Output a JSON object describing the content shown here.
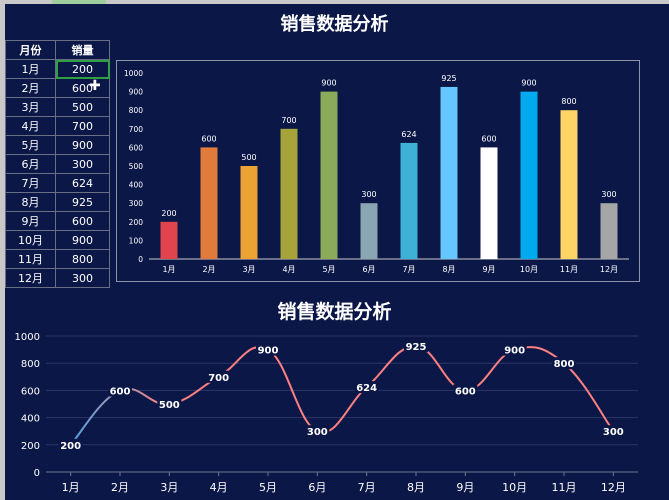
{
  "title": "销售数据分析",
  "table": {
    "headers": [
      "月份",
      "销量"
    ],
    "rows": [
      [
        "1月",
        "200"
      ],
      [
        "2月",
        "600"
      ],
      [
        "3月",
        "500"
      ],
      [
        "4月",
        "700"
      ],
      [
        "5月",
        "900"
      ],
      [
        "6月",
        "300"
      ],
      [
        "7月",
        "624"
      ],
      [
        "8月",
        "925"
      ],
      [
        "9月",
        "600"
      ],
      [
        "10月",
        "900"
      ],
      [
        "11月",
        "800"
      ],
      [
        "12月",
        "300"
      ]
    ],
    "selected_cell": "B2"
  },
  "chart_data": [
    {
      "type": "bar",
      "categories": [
        "1月",
        "2月",
        "3月",
        "4月",
        "5月",
        "6月",
        "7月",
        "8月",
        "9月",
        "10月",
        "11月",
        "12月"
      ],
      "values": [
        200,
        600,
        500,
        700,
        900,
        300,
        624,
        925,
        600,
        900,
        800,
        300
      ],
      "colors": [
        "#e0454f",
        "#e07b3c",
        "#eba334",
        "#a7a33b",
        "#8bab5a",
        "#8aa6b3",
        "#3db2d6",
        "#66c7ff",
        "#ffffff",
        "#00aaee",
        "#ffd466",
        "#a6a6a6"
      ],
      "ylim": [
        0,
        1000
      ],
      "yticks": [
        0,
        100,
        200,
        300,
        400,
        500,
        600,
        700,
        800,
        900,
        1000
      ],
      "data_labels": true,
      "grid": false
    },
    {
      "type": "line",
      "title": "销售数据分析",
      "categories": [
        "1月",
        "2月",
        "3月",
        "4月",
        "5月",
        "6月",
        "7月",
        "8月",
        "9月",
        "10月",
        "11月",
        "12月"
      ],
      "values": [
        200,
        600,
        500,
        700,
        900,
        300,
        624,
        925,
        600,
        900,
        800,
        300
      ],
      "ylim": [
        0,
        1000
      ],
      "yticks": [
        0,
        200,
        400,
        600,
        800,
        1000
      ],
      "smooth": true,
      "line_colors": [
        "#4fa3e0",
        "#ff8080"
      ],
      "data_labels": true,
      "grid": true
    }
  ]
}
